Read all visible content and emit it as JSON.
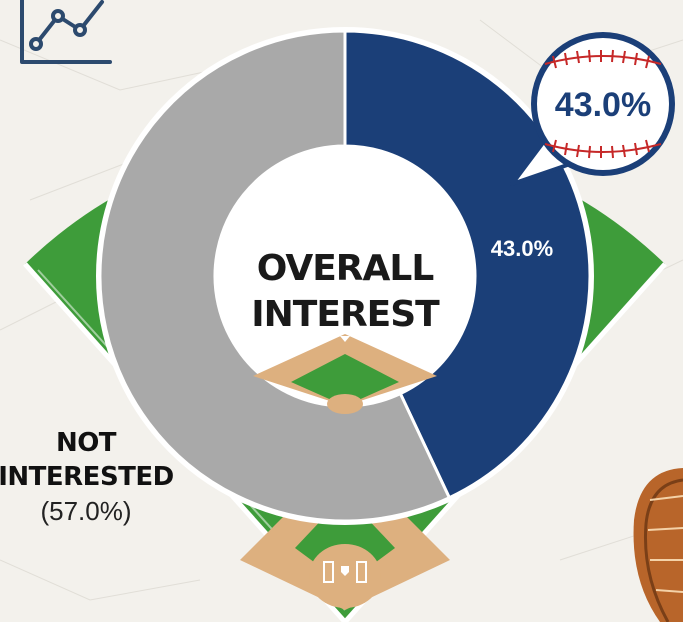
{
  "chart_data": {
    "type": "donut",
    "center_label": [
      "OVERALL",
      "INTEREST"
    ],
    "slices": [
      {
        "label": "",
        "value": 43.0,
        "value_label": "43.0%",
        "color": "#1b3f78"
      },
      {
        "label": "NOT INTERESTED",
        "value": 57.0,
        "value_label": "(57.0%)",
        "color": "#a9a9a9"
      }
    ],
    "callout": "43.0%",
    "outside_label": {
      "line1": "NOT",
      "line2": "INTERESTED",
      "line3": "(57.0%)"
    }
  },
  "icons": {
    "trend": "line-chart-icon",
    "baseball": "baseball-icon",
    "glove": "baseball-glove-icon",
    "field": "baseball-diamond-icon"
  },
  "colors": {
    "grass": "#3e9c3a",
    "grass_dark": "#2f8a30",
    "dirt": "#ddb07f",
    "navy": "#1b3f78",
    "gray": "#a9a9a9",
    "background": "#f3f1ec"
  }
}
